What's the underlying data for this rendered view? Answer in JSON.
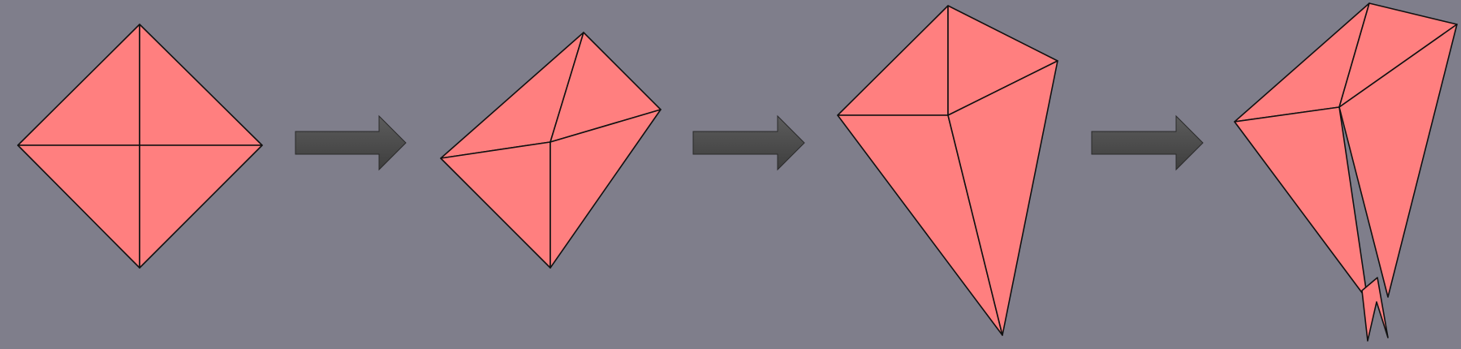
{
  "diagram": {
    "background_color": "#7f7e8b",
    "face_color": "#ff7f7f",
    "edge_color": "#111111",
    "arrow_color": "#4a4a4a",
    "steps": [
      {
        "name": "square-mesh"
      },
      {
        "name": "deformed-mesh-1"
      },
      {
        "name": "deformed-mesh-2"
      },
      {
        "name": "deformed-mesh-3"
      }
    ],
    "transitions": [
      {
        "from": "square-mesh",
        "to": "deformed-mesh-1"
      },
      {
        "from": "deformed-mesh-1",
        "to": "deformed-mesh-2"
      },
      {
        "from": "deformed-mesh-2",
        "to": "deformed-mesh-3"
      }
    ]
  }
}
